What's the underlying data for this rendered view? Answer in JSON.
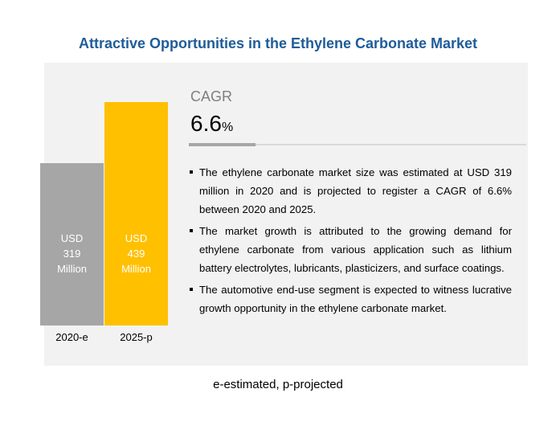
{
  "chart_data": {
    "type": "bar",
    "title": "Attractive Opportunities in the Ethylene Carbonate Market",
    "categories": [
      "2020-e",
      "2025-p"
    ],
    "values": [
      319,
      439
    ],
    "value_labels": [
      "USD 319 Million",
      "USD 439 Million"
    ],
    "colors": [
      "#a6a6a6",
      "#ffc000"
    ],
    "cagr": {
      "label": "CAGR",
      "value": "6.6",
      "unit": "%"
    },
    "bullets": [
      "The ethylene carbonate market size was estimated at USD 319 million in 2020 and is projected to register a CAGR of 6.6% between 2020 and 2025.",
      "The market growth is attributed to the growing demand for ethylene carbonate from various application such as lithium battery electrolytes, lubricants, plasticizers, and surface coatings.",
      "The automotive end-use segment is expected to witness lucrative growth opportunity in the ethylene carbonate market."
    ],
    "footnote": "e-estimated, p-projected"
  }
}
